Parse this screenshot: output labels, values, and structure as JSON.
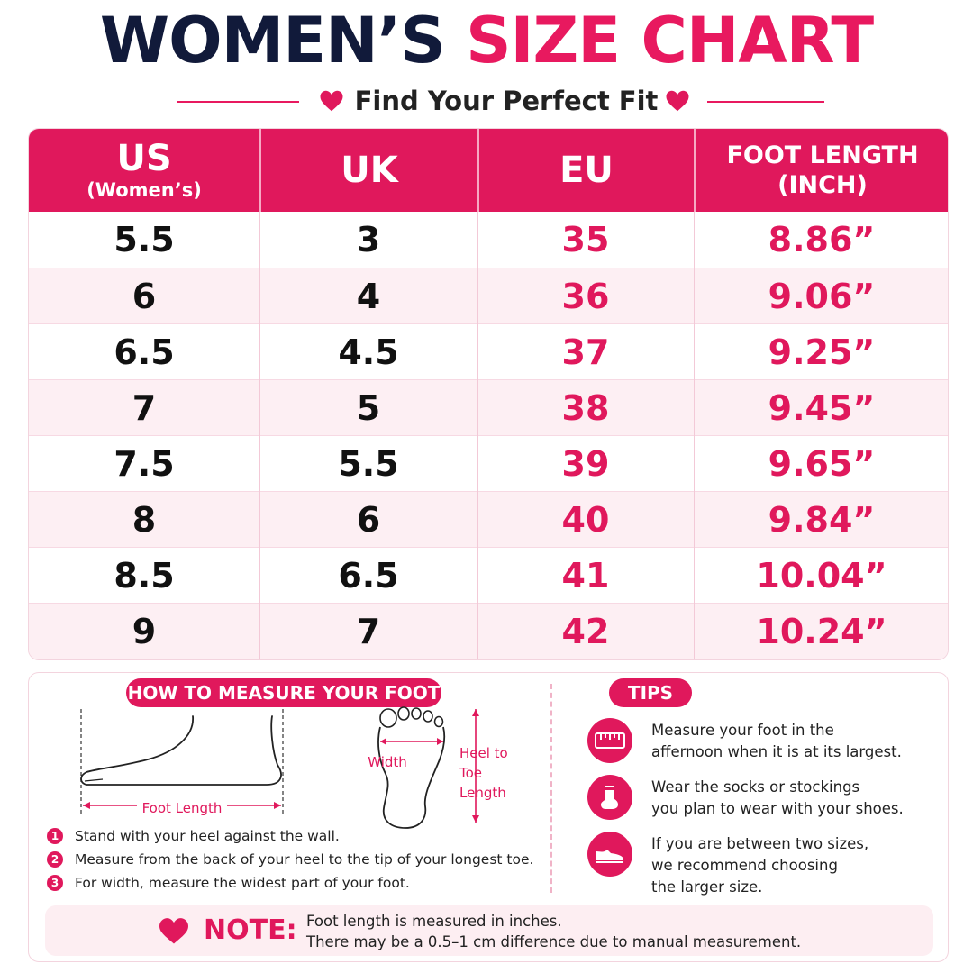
{
  "title": {
    "part1": "WOMEN’S",
    "part2": "SIZE CHART"
  },
  "subtitle": "Find Your Perfect Fit",
  "colors": {
    "accent": "#e0185c",
    "navy": "#111a3a",
    "row_alt": "#fdeff3"
  },
  "table": {
    "headers": [
      {
        "main": "US",
        "sub": "(Women’s)"
      },
      {
        "main": "UK",
        "sub": ""
      },
      {
        "main": "EU",
        "sub": ""
      },
      {
        "main": "FOOT LENGTH",
        "sub": "(INCH)"
      }
    ],
    "rows": [
      [
        "5.5",
        "3",
        "35",
        "8.86”"
      ],
      [
        "6",
        "4",
        "36",
        "9.06”"
      ],
      [
        "6.5",
        "4.5",
        "37",
        "9.25”"
      ],
      [
        "7",
        "5",
        "38",
        "9.45”"
      ],
      [
        "7.5",
        "5.5",
        "39",
        "9.65”"
      ],
      [
        "8",
        "6",
        "40",
        "9.84”"
      ],
      [
        "8.5",
        "6.5",
        "41",
        "10.04”"
      ],
      [
        "9",
        "7",
        "42",
        "10.24”"
      ]
    ]
  },
  "measure": {
    "heading": "HOW TO MEASURE YOUR FOOT",
    "foot_length_label": "Foot Length",
    "width_label": "Width",
    "heel_to_toe_label": [
      "Heel to",
      "Toe",
      "Length"
    ],
    "steps": [
      {
        "num": "1",
        "text": "Stand with your heel against the wall."
      },
      {
        "num": "2",
        "text": "Measure from the back of your heel to the tip of your longest toe."
      },
      {
        "num": "3",
        "text": "For width, measure the widest part of your foot."
      }
    ]
  },
  "tips": {
    "heading": "TIPS",
    "items": [
      {
        "icon": "ruler-icon",
        "line1": "Measure your foot in the",
        "line2": "affernoon when it is at its largest.",
        "line3": ""
      },
      {
        "icon": "sock-icon",
        "line1": "Wear the socks or stockings",
        "line2": "you plan to wear with your shoes.",
        "line3": ""
      },
      {
        "icon": "shoe-icon",
        "line1": "If you are between two sizes,",
        "line2": "we recommend choosing",
        "line3": "the larger size."
      }
    ]
  },
  "note": {
    "label": "NOTE:",
    "line1": "Foot length is measured in inches.",
    "line2": "There may be a 0.5–1 cm difference due to manual measurement."
  }
}
